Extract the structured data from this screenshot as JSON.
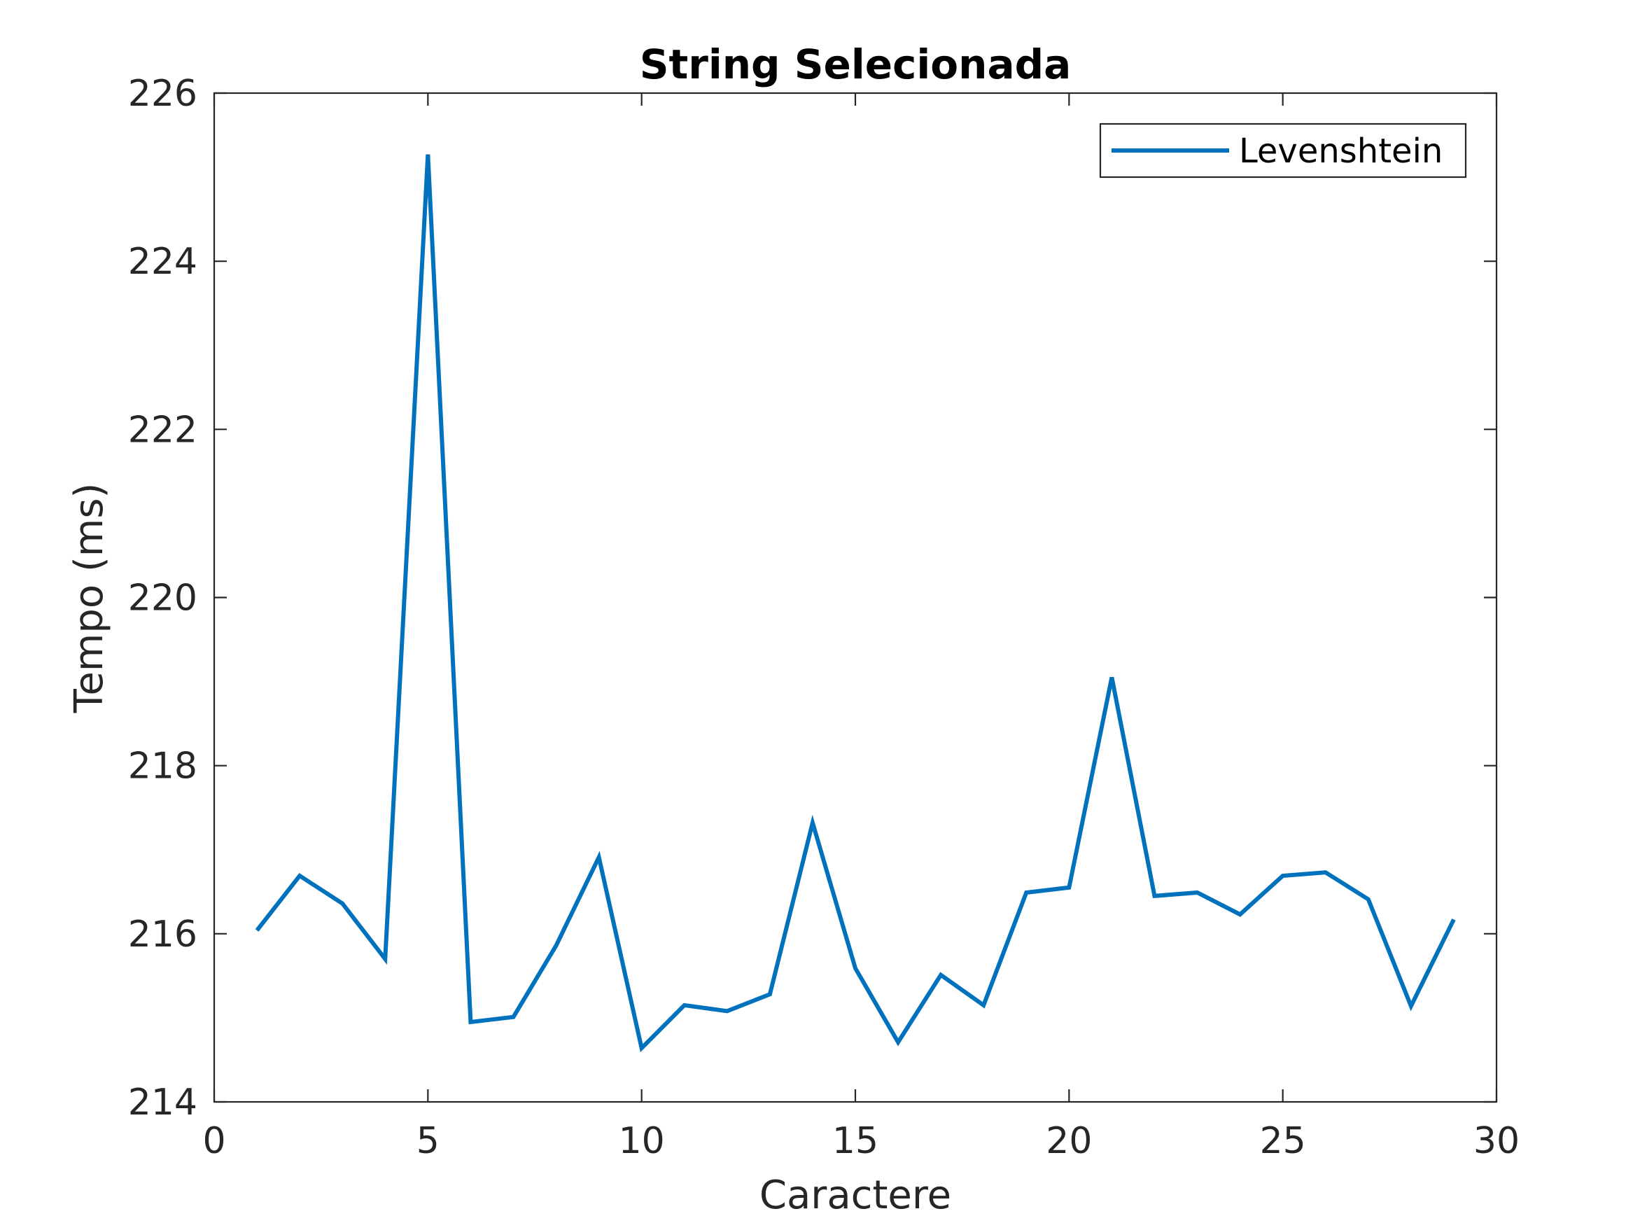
{
  "chart_data": {
    "type": "line",
    "title": "String Selecionada",
    "xlabel": "Caractere",
    "ylabel": "Tempo (ms)",
    "xlim": [
      0,
      30
    ],
    "ylim": [
      214,
      226
    ],
    "x_ticks": [
      0,
      5,
      10,
      15,
      20,
      25,
      30
    ],
    "y_ticks": [
      214,
      216,
      218,
      220,
      222,
      224,
      226
    ],
    "grid": false,
    "legend_position": "top-right",
    "series": [
      {
        "name": "Levenshtein",
        "color": "#0072BD",
        "x": [
          1,
          2,
          3,
          4,
          5,
          6,
          7,
          8,
          9,
          10,
          11,
          12,
          13,
          14,
          15,
          16,
          17,
          18,
          19,
          20,
          21,
          22,
          23,
          24,
          25,
          26,
          27,
          28,
          29
        ],
        "values": [
          216.04,
          216.69,
          216.36,
          215.7,
          225.27,
          214.95,
          215.01,
          215.86,
          216.91,
          214.64,
          215.15,
          215.08,
          215.28,
          217.32,
          215.59,
          214.71,
          215.51,
          215.15,
          216.49,
          216.55,
          219.05,
          216.45,
          216.49,
          216.23,
          216.69,
          216.73,
          216.41,
          215.14,
          216.17
        ]
      }
    ]
  }
}
